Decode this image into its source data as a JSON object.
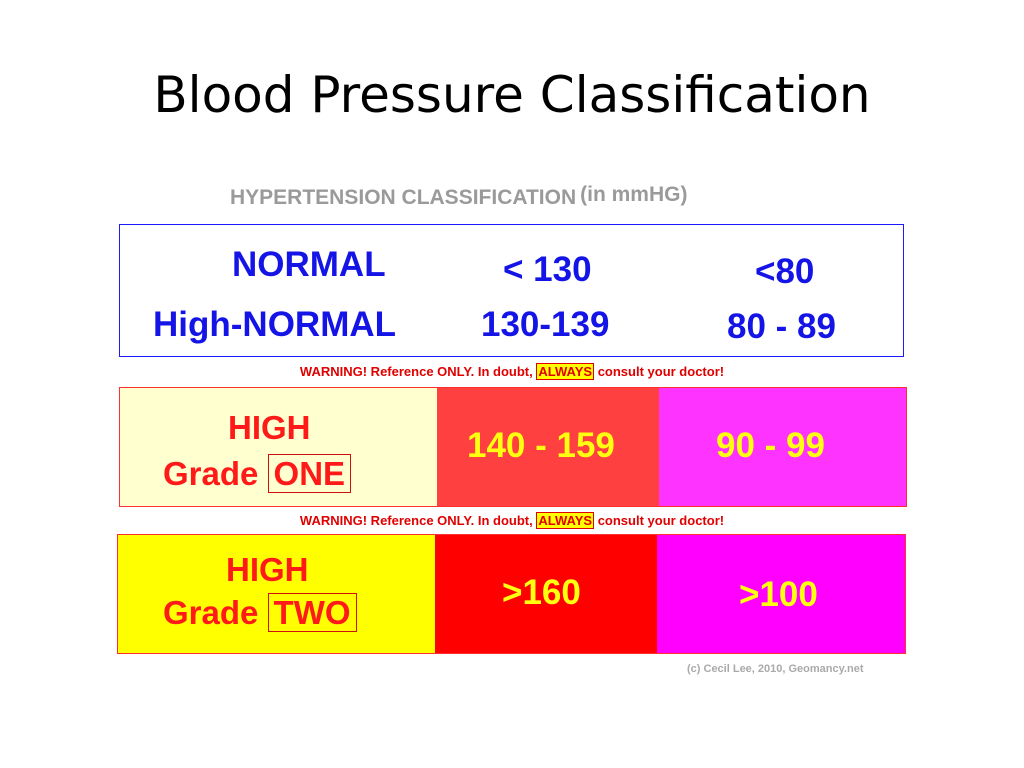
{
  "slide_title": "Blood Pressure Classification",
  "subtitle": {
    "main": "HYPERTENSION CLASSIFICATION",
    "unit": "(in mmHG)"
  },
  "normal_table": {
    "rows": [
      {
        "label": "NORMAL",
        "systolic": "< 130",
        "diastolic": "<80"
      },
      {
        "label": "High-NORMAL",
        "systolic": "130-139",
        "diastolic": "80 - 89"
      }
    ]
  },
  "warning": {
    "before": "WARNING! Reference ONLY. In doubt,",
    "highlight": "ALWAYS",
    "after": "consult your doctor!"
  },
  "grade_one": {
    "line1": "HIGH",
    "grade_word": "Grade",
    "grade_num": "ONE",
    "systolic": "140 - 159",
    "diastolic": "90 - 99"
  },
  "grade_two": {
    "line1": "HIGH",
    "grade_word": "Grade",
    "grade_num": "TWO",
    "systolic": ">160",
    "diastolic": ">100"
  },
  "copyright": "(c) Cecil Lee, 2010, Geomancy.net",
  "colors": {
    "normal_border": "#1a1aff",
    "normal_text": "#1414e6",
    "grade_one_label_bg": "#ffffd0",
    "grade_one_systolic_bg": "#ff4040",
    "grade_one_diastolic_bg": "#ff33ff",
    "grade_two_label_bg": "#ffff00",
    "grade_two_systolic_bg": "#ff0000",
    "grade_two_diastolic_bg": "#ff00ff",
    "value_text": "#ffff10",
    "warning_text": "#e00000"
  }
}
